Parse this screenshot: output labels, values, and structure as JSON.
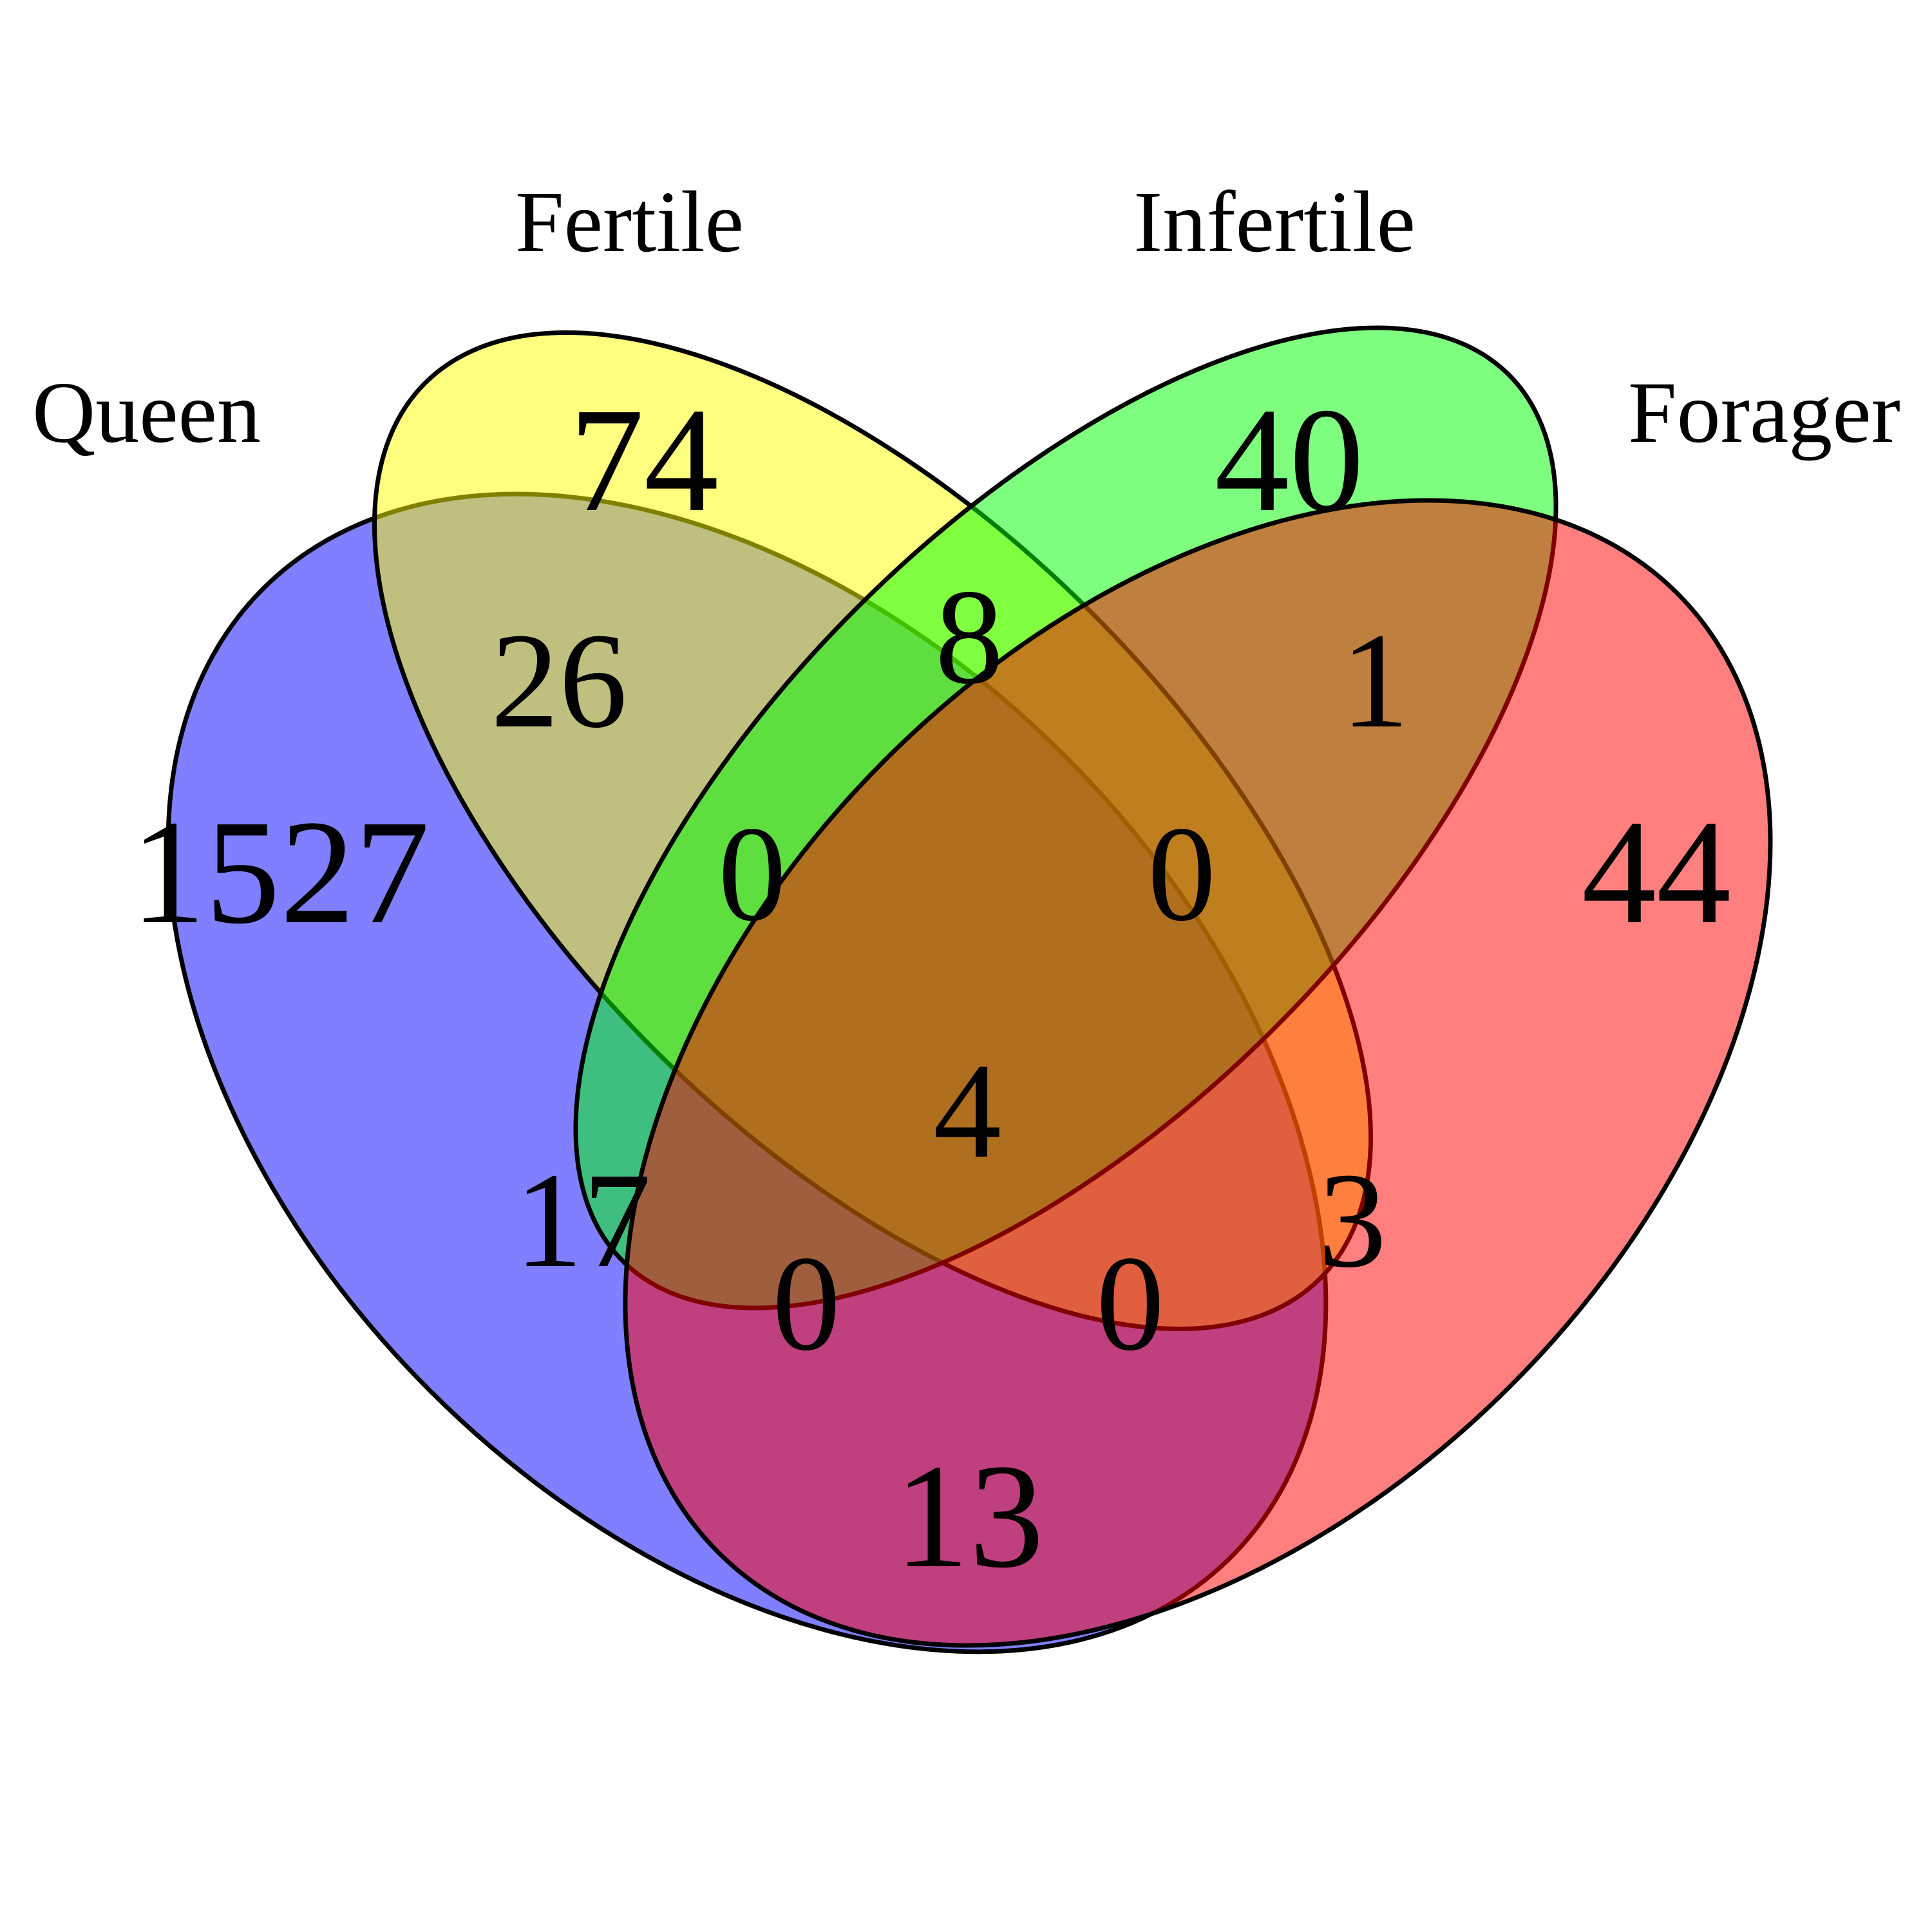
{
  "sets": [
    {
      "key": "queen",
      "label": "Queen",
      "color": "#0000ff"
    },
    {
      "key": "fertile",
      "label": "Fertile",
      "color": "#ffff00"
    },
    {
      "key": "infertile",
      "label": "Infertile",
      "color": "#00ff00"
    },
    {
      "key": "forager",
      "label": "Forager",
      "color": "#ff0000"
    }
  ],
  "regions": {
    "queen_only": "1527",
    "fertile_only": "74",
    "infertile_only": "40",
    "forager_only": "44",
    "queen_fertile": "26",
    "fertile_infertile": "8",
    "infertile_forager": "1",
    "queen_infertile": "17",
    "fertile_forager": "3",
    "queen_forager": "13",
    "queen_fertile_infertile": "0",
    "fertile_infertile_forager": "0",
    "queen_infertile_forager": "0",
    "queen_fertile_forager": "0",
    "all_four": "4"
  }
}
